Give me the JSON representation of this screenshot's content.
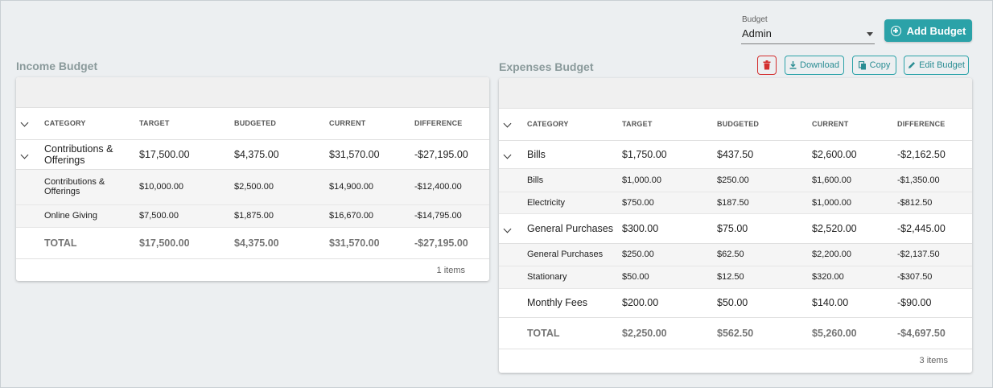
{
  "budget_select": {
    "label": "Budget",
    "value": "Admin"
  },
  "add_budget_label": "Add Budget",
  "income": {
    "title": "Income Budget",
    "headers": [
      "CATEGORY",
      "TARGET",
      "BUDGETED",
      "CURRENT",
      "DIFFERENCE"
    ],
    "groups": [
      {
        "category": "Contributions & Offerings",
        "target": "$17,500.00",
        "budgeted": "$4,375.00",
        "current": "$31,570.00",
        "difference": "-$27,195.00",
        "items": [
          {
            "category": "Contributions & Offerings",
            "target": "$10,000.00",
            "budgeted": "$2,500.00",
            "current": "$14,900.00",
            "difference": "-$12,400.00"
          },
          {
            "category": "Online Giving",
            "target": "$7,500.00",
            "budgeted": "$1,875.00",
            "current": "$16,670.00",
            "difference": "-$14,795.00"
          }
        ]
      }
    ],
    "total": {
      "label": "TOTAL",
      "target": "$17,500.00",
      "budgeted": "$4,375.00",
      "current": "$31,570.00",
      "difference": "-$27,195.00"
    },
    "count": "1 items"
  },
  "expenses": {
    "title": "Expenses Budget",
    "buttons": {
      "download": "Download",
      "copy": "Copy",
      "edit": "Edit Budget"
    },
    "headers": [
      "CATEGORY",
      "TARGET",
      "BUDGETED",
      "CURRENT",
      "DIFFERENCE"
    ],
    "groups": [
      {
        "category": "Bills",
        "target": "$1,750.00",
        "budgeted": "$437.50",
        "current": "$2,600.00",
        "difference": "-$2,162.50",
        "items": [
          {
            "category": "Bills",
            "target": "$1,000.00",
            "budgeted": "$250.00",
            "current": "$1,600.00",
            "difference": "-$1,350.00"
          },
          {
            "category": "Electricity",
            "target": "$750.00",
            "budgeted": "$187.50",
            "current": "$1,000.00",
            "difference": "-$812.50"
          }
        ]
      },
      {
        "category": "General Purchases",
        "target": "$300.00",
        "budgeted": "$75.00",
        "current": "$2,520.00",
        "difference": "-$2,445.00",
        "items": [
          {
            "category": "General Purchases",
            "target": "$250.00",
            "budgeted": "$62.50",
            "current": "$2,200.00",
            "difference": "-$2,137.50"
          },
          {
            "category": "Stationary",
            "target": "$50.00",
            "budgeted": "$12.50",
            "current": "$320.00",
            "difference": "-$307.50"
          }
        ]
      }
    ],
    "monthly": {
      "category": "Monthly Fees",
      "target": "$200.00",
      "budgeted": "$50.00",
      "current": "$140.00",
      "difference": "-$90.00"
    },
    "total": {
      "label": "TOTAL",
      "target": "$2,250.00",
      "budgeted": "$562.50",
      "current": "$5,260.00",
      "difference": "-$4,697.50"
    },
    "count": "3 items"
  },
  "colors": {
    "accent": "#2ba2a8",
    "danger": "#d32f2f",
    "background": "#eceff1"
  }
}
